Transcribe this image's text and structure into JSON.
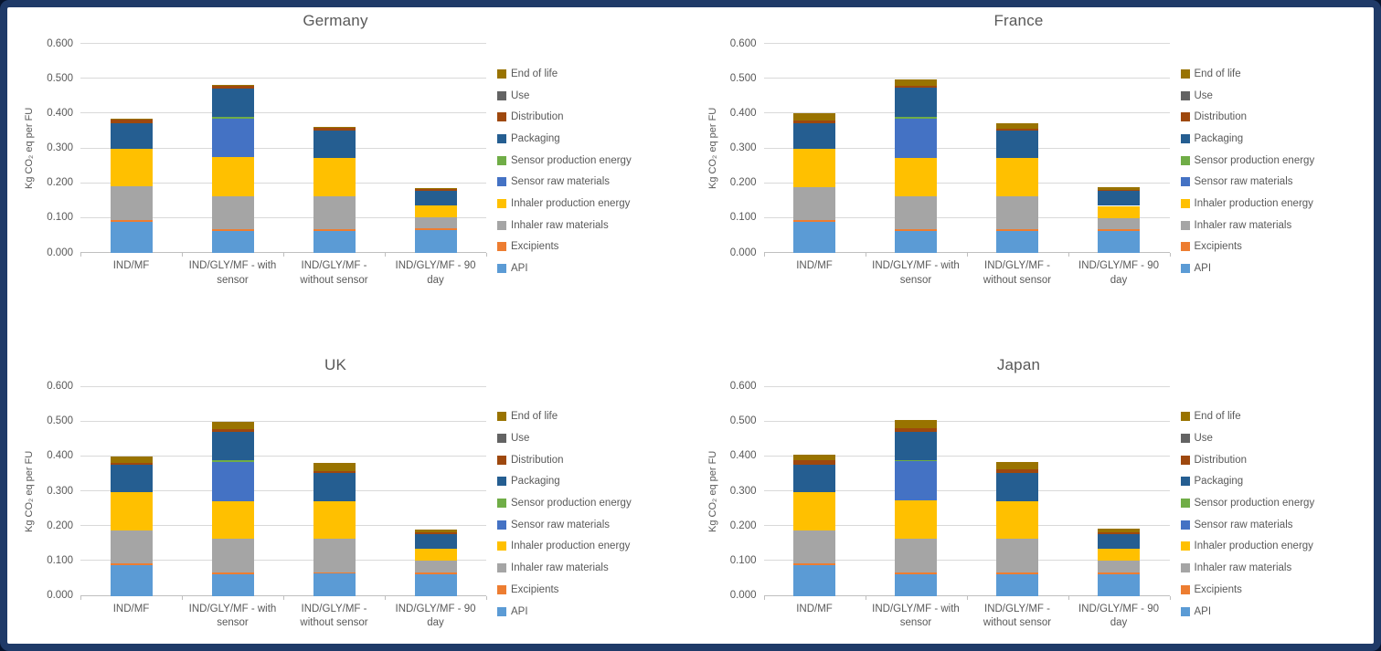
{
  "styles": {
    "frame_border_color": "#1f3a68",
    "background": "#ffffff",
    "gridline_color": "#d9d9d9",
    "axis_color": "#bfbfbf",
    "text_color": "#595959"
  },
  "y_axis": {
    "label": "Kg CO₂ eq per FU",
    "tick_labels": [
      "0.000",
      "0.100",
      "0.200",
      "0.300",
      "0.400",
      "0.500",
      "0.600"
    ],
    "min": 0,
    "max": 0.6,
    "step": 0.1
  },
  "categories": [
    "IND/MF",
    "IND/GLY/MF - with sensor",
    "IND/GLY/MF - without sensor",
    "IND/GLY/MF - 90 day"
  ],
  "category_label_lines": [
    [
      "IND/MF"
    ],
    [
      "IND/GLY/MF - with",
      "sensor"
    ],
    [
      "IND/GLY/MF -",
      "without sensor"
    ],
    [
      "IND/GLY/MF - 90",
      "day"
    ]
  ],
  "legend_order_top_down": [
    "End of life",
    "Use",
    "Distribution",
    "Packaging",
    "Sensor production energy",
    "Sensor raw materials",
    "Inhaler production energy",
    "Inhaler raw materials",
    "Excipients",
    "API"
  ],
  "chart_data": [
    {
      "type": "bar",
      "stacked": true,
      "title": "Germany",
      "ylabel": "Kg CO₂ eq per FU",
      "ylim": [
        0,
        0.6
      ],
      "grid": true,
      "legend_position": "right",
      "legend_clipped": false,
      "categories": [
        "IND/MF",
        "IND/GLY/MF - with sensor",
        "IND/GLY/MF - without sensor",
        "IND/GLY/MF - 90 day"
      ],
      "series": [
        {
          "name": "API",
          "color": "#5B9BD5",
          "values": [
            0.09,
            0.063,
            0.063,
            0.065
          ]
        },
        {
          "name": "Excipients",
          "color": "#ED7D31",
          "values": [
            0.005,
            0.006,
            0.006,
            0.005
          ]
        },
        {
          "name": "Inhaler raw materials",
          "color": "#A5A5A5",
          "values": [
            0.097,
            0.094,
            0.094,
            0.031
          ]
        },
        {
          "name": "Inhaler production energy",
          "color": "#FFC000",
          "values": [
            0.108,
            0.111,
            0.11,
            0.034
          ]
        },
        {
          "name": "Sensor raw materials",
          "color": "#4472C4",
          "values": [
            0,
            0.112,
            0,
            0
          ]
        },
        {
          "name": "Sensor production energy",
          "color": "#70AD47",
          "values": [
            0,
            0.005,
            0,
            0
          ]
        },
        {
          "name": "Packaging",
          "color": "#255E91",
          "values": [
            0.073,
            0.081,
            0.078,
            0.043
          ]
        },
        {
          "name": "Distribution",
          "color": "#9E480E",
          "values": [
            0.01,
            0.009,
            0.008,
            0.007
          ]
        },
        {
          "name": "Use",
          "color": "#636363",
          "values": [
            0,
            0,
            0,
            0
          ]
        },
        {
          "name": "End of life",
          "color": "#997300",
          "values": [
            0.003,
            0.002,
            0.002,
            0.002
          ]
        }
      ]
    },
    {
      "type": "bar",
      "stacked": true,
      "title": "France",
      "ylabel": "Kg CO₂ eq per FU",
      "ylim": [
        0,
        0.6
      ],
      "grid": true,
      "legend_position": "right",
      "legend_clipped": true,
      "categories": [
        "IND/MF",
        "IND/GLY/MF - with sensor",
        "IND/GLY/MF - without sensor",
        "IND/GLY/MF - 90 day"
      ],
      "series": [
        {
          "name": "API",
          "color": "#5B9BD5",
          "values": [
            0.09,
            0.062,
            0.062,
            0.062
          ]
        },
        {
          "name": "Excipients",
          "color": "#ED7D31",
          "values": [
            0.005,
            0.006,
            0.006,
            0.006
          ]
        },
        {
          "name": "Inhaler raw materials",
          "color": "#A5A5A5",
          "values": [
            0.093,
            0.095,
            0.095,
            0.032
          ]
        },
        {
          "name": "Inhaler production energy",
          "color": "#FFC000",
          "values": [
            0.11,
            0.11,
            0.109,
            0.035
          ]
        },
        {
          "name": "Sensor raw materials",
          "color": "#4472C4",
          "values": [
            0,
            0.113,
            0,
            0
          ]
        },
        {
          "name": "Sensor production energy",
          "color": "#70AD47",
          "values": [
            0,
            0.004,
            0,
            0
          ]
        },
        {
          "name": "Packaging",
          "color": "#255E91",
          "values": [
            0.075,
            0.083,
            0.078,
            0.043
          ]
        },
        {
          "name": "Distribution",
          "color": "#9E480E",
          "values": [
            0.007,
            0.006,
            0.006,
            0.003
          ]
        },
        {
          "name": "Use",
          "color": "#636363",
          "values": [
            0,
            0,
            0,
            0
          ]
        },
        {
          "name": "End of life",
          "color": "#997300",
          "values": [
            0.02,
            0.019,
            0.017,
            0.009
          ]
        }
      ]
    },
    {
      "type": "bar",
      "stacked": true,
      "title": "UK",
      "ylabel": "Kg CO₂ eq per FU",
      "ylim": [
        0,
        0.6
      ],
      "grid": true,
      "legend_position": "right",
      "legend_clipped": false,
      "categories": [
        "IND/MF",
        "IND/GLY/MF - with sensor",
        "IND/GLY/MF - without sensor",
        "IND/GLY/MF - 90 day"
      ],
      "series": [
        {
          "name": "API",
          "color": "#5B9BD5",
          "values": [
            0.088,
            0.062,
            0.063,
            0.062
          ]
        },
        {
          "name": "Excipients",
          "color": "#ED7D31",
          "values": [
            0.005,
            0.006,
            0.005,
            0.006
          ]
        },
        {
          "name": "Inhaler raw materials",
          "color": "#A5A5A5",
          "values": [
            0.095,
            0.095,
            0.095,
            0.032
          ]
        },
        {
          "name": "Inhaler production energy",
          "color": "#FFC000",
          "values": [
            0.109,
            0.109,
            0.109,
            0.035
          ]
        },
        {
          "name": "Sensor raw materials",
          "color": "#4472C4",
          "values": [
            0,
            0.113,
            0,
            0
          ]
        },
        {
          "name": "Sensor production energy",
          "color": "#70AD47",
          "values": [
            0,
            0.004,
            0,
            0
          ]
        },
        {
          "name": "Packaging",
          "color": "#255E91",
          "values": [
            0.078,
            0.082,
            0.08,
            0.043
          ]
        },
        {
          "name": "Distribution",
          "color": "#9E480E",
          "values": [
            0.005,
            0.007,
            0.006,
            0.003
          ]
        },
        {
          "name": "Use",
          "color": "#636363",
          "values": [
            0,
            0,
            0,
            0
          ]
        },
        {
          "name": "End of life",
          "color": "#997300",
          "values": [
            0.02,
            0.02,
            0.022,
            0.008
          ]
        }
      ]
    },
    {
      "type": "bar",
      "stacked": true,
      "title": "Japan",
      "ylabel": "Kg CO₂ eq per FU",
      "ylim": [
        0,
        0.6
      ],
      "grid": true,
      "legend_position": "right",
      "legend_clipped": true,
      "categories": [
        "IND/MF",
        "IND/GLY/MF - with sensor",
        "IND/GLY/MF - without sensor",
        "IND/GLY/MF - 90 day"
      ],
      "series": [
        {
          "name": "API",
          "color": "#5B9BD5",
          "values": [
            0.088,
            0.062,
            0.062,
            0.062
          ]
        },
        {
          "name": "Excipients",
          "color": "#ED7D31",
          "values": [
            0.005,
            0.006,
            0.005,
            0.006
          ]
        },
        {
          "name": "Inhaler raw materials",
          "color": "#A5A5A5",
          "values": [
            0.095,
            0.095,
            0.096,
            0.032
          ]
        },
        {
          "name": "Inhaler production energy",
          "color": "#FFC000",
          "values": [
            0.109,
            0.11,
            0.109,
            0.035
          ]
        },
        {
          "name": "Sensor raw materials",
          "color": "#4472C4",
          "values": [
            0,
            0.114,
            0,
            0
          ]
        },
        {
          "name": "Sensor production energy",
          "color": "#70AD47",
          "values": [
            0,
            0.003,
            0,
            0
          ]
        },
        {
          "name": "Packaging",
          "color": "#255E91",
          "values": [
            0.078,
            0.08,
            0.08,
            0.043
          ]
        },
        {
          "name": "Distribution",
          "color": "#9E480E",
          "values": [
            0.013,
            0.012,
            0.011,
            0.005
          ]
        },
        {
          "name": "Use",
          "color": "#636363",
          "values": [
            0,
            0,
            0,
            0
          ]
        },
        {
          "name": "End of life",
          "color": "#997300",
          "values": [
            0.017,
            0.023,
            0.022,
            0.009
          ]
        }
      ]
    }
  ]
}
